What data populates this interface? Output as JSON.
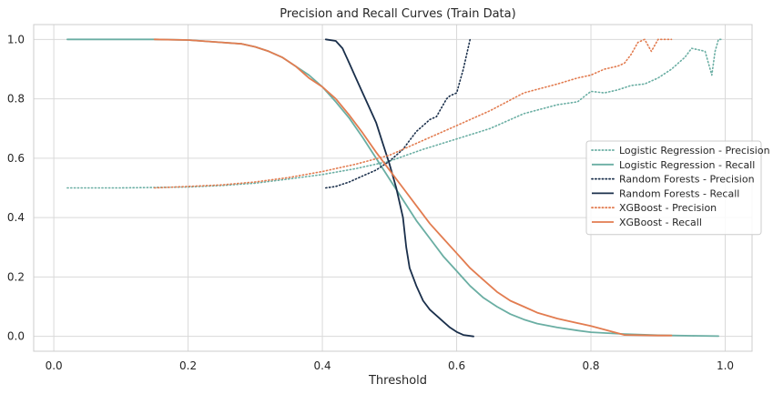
{
  "chart_data": {
    "type": "line",
    "title": "Precision and Recall Curves (Train Data)",
    "xlabel": "Threshold",
    "ylabel": "",
    "xlim": [
      -0.03,
      1.04
    ],
    "ylim": [
      -0.05,
      1.05
    ],
    "xticks": [
      0.0,
      0.2,
      0.4,
      0.6,
      0.8,
      1.0
    ],
    "xtick_labels": [
      "0.0",
      "0.2",
      "0.4",
      "0.6",
      "0.8",
      "1.0"
    ],
    "yticks": [
      0.0,
      0.2,
      0.4,
      0.6,
      0.8,
      1.0
    ],
    "ytick_labels": [
      "0.0",
      "0.2",
      "0.4",
      "0.6",
      "0.8",
      "1.0"
    ],
    "grid": true,
    "legend_position": "center-right",
    "series": [
      {
        "name": "Logistic Regression - Precision",
        "color": "#6aaea3",
        "style": "dotted",
        "x": [
          0.02,
          0.1,
          0.2,
          0.25,
          0.3,
          0.35,
          0.4,
          0.45,
          0.5,
          0.55,
          0.6,
          0.65,
          0.7,
          0.75,
          0.78,
          0.8,
          0.82,
          0.84,
          0.86,
          0.88,
          0.9,
          0.92,
          0.94,
          0.95,
          0.96,
          0.97,
          0.98,
          0.985,
          0.99,
          0.995
        ],
        "y": [
          0.5,
          0.5,
          0.503,
          0.508,
          0.516,
          0.53,
          0.545,
          0.565,
          0.59,
          0.63,
          0.665,
          0.7,
          0.75,
          0.78,
          0.79,
          0.825,
          0.82,
          0.83,
          0.845,
          0.85,
          0.87,
          0.9,
          0.94,
          0.97,
          0.965,
          0.96,
          0.88,
          0.96,
          1.0,
          1.0
        ]
      },
      {
        "name": "Logistic Regression - Recall",
        "color": "#6aaea3",
        "style": "solid",
        "x": [
          0.02,
          0.1,
          0.15,
          0.2,
          0.25,
          0.28,
          0.3,
          0.32,
          0.34,
          0.36,
          0.38,
          0.4,
          0.42,
          0.44,
          0.46,
          0.48,
          0.5,
          0.52,
          0.54,
          0.56,
          0.58,
          0.6,
          0.62,
          0.64,
          0.66,
          0.68,
          0.7,
          0.72,
          0.75,
          0.78,
          0.8,
          0.85,
          0.9,
          0.95,
          0.99
        ],
        "y": [
          1.0,
          1.0,
          1.0,
          0.998,
          0.99,
          0.985,
          0.975,
          0.96,
          0.94,
          0.91,
          0.88,
          0.84,
          0.79,
          0.735,
          0.67,
          0.6,
          0.53,
          0.46,
          0.39,
          0.33,
          0.27,
          0.22,
          0.17,
          0.13,
          0.1,
          0.075,
          0.057,
          0.043,
          0.03,
          0.02,
          0.014,
          0.008,
          0.004,
          0.002,
          0.001
        ]
      },
      {
        "name": "Random Forests - Precision",
        "color": "#1a2f4b",
        "style": "dotted",
        "x": [
          0.405,
          0.42,
          0.44,
          0.46,
          0.48,
          0.5,
          0.51,
          0.52,
          0.53,
          0.54,
          0.55,
          0.56,
          0.57,
          0.575,
          0.58,
          0.585,
          0.59,
          0.6,
          0.605,
          0.61,
          0.615,
          0.62
        ],
        "y": [
          0.5,
          0.505,
          0.52,
          0.54,
          0.56,
          0.59,
          0.61,
          0.63,
          0.66,
          0.69,
          0.71,
          0.73,
          0.74,
          0.76,
          0.78,
          0.8,
          0.81,
          0.82,
          0.86,
          0.9,
          0.95,
          1.0
        ]
      },
      {
        "name": "Random Forests - Recall",
        "color": "#1a2f4b",
        "style": "solid",
        "x": [
          0.405,
          0.42,
          0.43,
          0.44,
          0.45,
          0.46,
          0.47,
          0.48,
          0.49,
          0.5,
          0.51,
          0.52,
          0.525,
          0.53,
          0.54,
          0.55,
          0.56,
          0.57,
          0.58,
          0.59,
          0.6,
          0.61,
          0.625
        ],
        "y": [
          1.0,
          0.995,
          0.97,
          0.92,
          0.87,
          0.82,
          0.77,
          0.72,
          0.65,
          0.58,
          0.5,
          0.4,
          0.3,
          0.23,
          0.17,
          0.12,
          0.09,
          0.07,
          0.05,
          0.03,
          0.015,
          0.005,
          0.0
        ]
      },
      {
        "name": "XGBoost - Precision",
        "color": "#e27c50",
        "style": "dotted",
        "x": [
          0.15,
          0.2,
          0.25,
          0.3,
          0.35,
          0.4,
          0.45,
          0.5,
          0.55,
          0.6,
          0.65,
          0.7,
          0.75,
          0.78,
          0.8,
          0.82,
          0.84,
          0.85,
          0.86,
          0.87,
          0.88,
          0.89,
          0.9,
          0.92
        ],
        "y": [
          0.5,
          0.505,
          0.51,
          0.52,
          0.535,
          0.555,
          0.58,
          0.61,
          0.66,
          0.71,
          0.76,
          0.82,
          0.85,
          0.87,
          0.88,
          0.9,
          0.91,
          0.92,
          0.95,
          0.99,
          1.0,
          0.96,
          1.0,
          1.0
        ]
      },
      {
        "name": "XGBoost - Recall",
        "color": "#e27c50",
        "style": "solid",
        "x": [
          0.15,
          0.2,
          0.25,
          0.28,
          0.3,
          0.32,
          0.34,
          0.36,
          0.38,
          0.4,
          0.42,
          0.44,
          0.46,
          0.48,
          0.5,
          0.52,
          0.54,
          0.56,
          0.58,
          0.6,
          0.62,
          0.64,
          0.66,
          0.68,
          0.7,
          0.72,
          0.75,
          0.8,
          0.85,
          0.9,
          0.92
        ],
        "y": [
          1.0,
          0.998,
          0.99,
          0.985,
          0.975,
          0.96,
          0.94,
          0.91,
          0.87,
          0.84,
          0.8,
          0.745,
          0.685,
          0.62,
          0.56,
          0.5,
          0.44,
          0.38,
          0.33,
          0.28,
          0.23,
          0.19,
          0.15,
          0.12,
          0.1,
          0.08,
          0.06,
          0.035,
          0.005,
          0.003,
          0.003
        ]
      }
    ]
  }
}
